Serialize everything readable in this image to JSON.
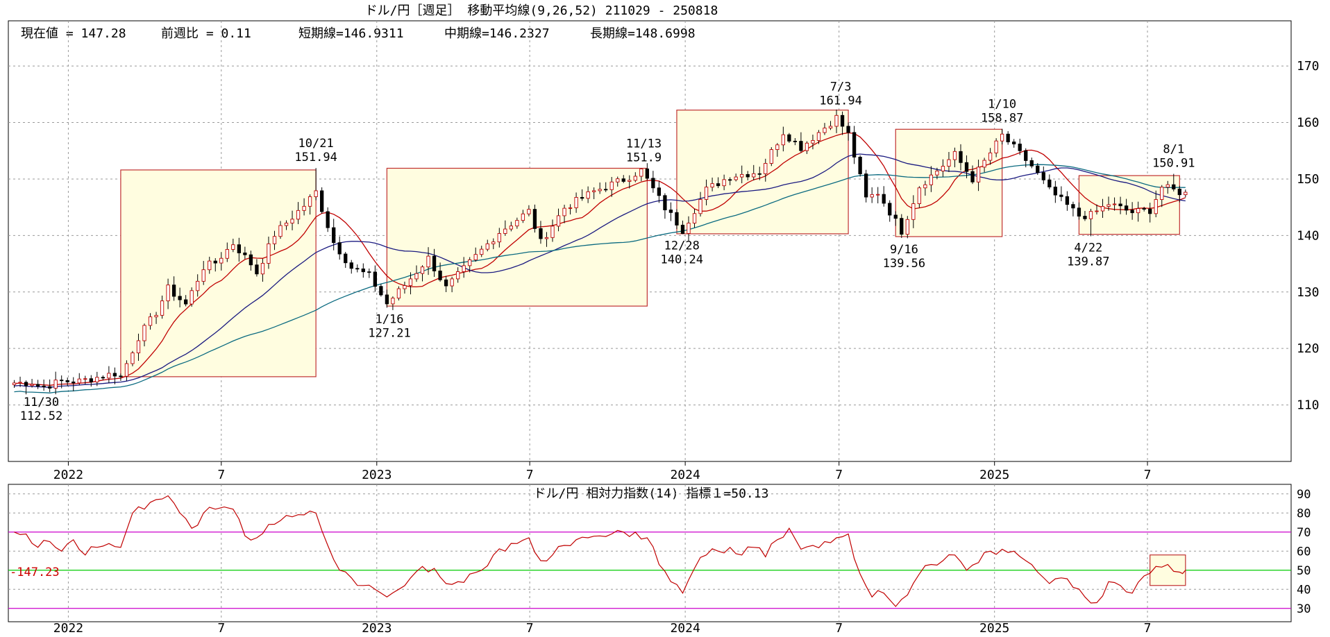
{
  "main_title": "ドル/円［週足］ 移動平均線(9,26,52)  211029 - 250818",
  "info": {
    "current": "現在値 = 147.28",
    "weekly_change": "前週比 = 0.11",
    "short_ma": "短期線=146.9311",
    "mid_ma": "中期線=146.2327",
    "long_ma": "長期線=148.6998"
  },
  "colors": {
    "up_candle": "#ffffff",
    "down_candle": "#000000",
    "short_ma": "#c00000",
    "mid_ma": "#1a1a80",
    "long_ma": "#0a6a80",
    "highlight_box_fill": "#fffde0",
    "highlight_box_border": "#c03030",
    "rsi_line": "#c00000",
    "rsi_band_line": "#cc00cc",
    "rsi_mid_line": "#00cc00",
    "rsi_marker": "#cc0000"
  },
  "chart_data": [
    {
      "type": "candlestick",
      "title": "ドル/円［週足］ 移動平均線(9,26,52)  211029 - 250818",
      "x_range": [
        "2021-10-29",
        "2025-08-18"
      ],
      "ylim": [
        100,
        178
      ],
      "y_ticks": [
        110,
        120,
        130,
        140,
        150,
        160,
        170
      ],
      "x_tick_labels": [
        {
          "date": "2022-01-01",
          "label": "2022"
        },
        {
          "date": "2022-07-01",
          "label": "7"
        },
        {
          "date": "2023-01-01",
          "label": "2023"
        },
        {
          "date": "2023-07-01",
          "label": "7"
        },
        {
          "date": "2024-01-01",
          "label": "2024"
        },
        {
          "date": "2024-07-01",
          "label": "7"
        },
        {
          "date": "2025-01-01",
          "label": "2025"
        },
        {
          "date": "2025-07-01",
          "label": "7"
        }
      ],
      "grid": true,
      "key_points": [
        {
          "date": "2021-11-30",
          "value": 112.52
        },
        {
          "date": "2022-10-21",
          "value": 151.94
        },
        {
          "date": "2023-01-16",
          "value": 127.21
        },
        {
          "date": "2023-11-13",
          "value": 151.9
        },
        {
          "date": "2023-12-28",
          "value": 140.24
        },
        {
          "date": "2024-07-03",
          "value": 161.94
        },
        {
          "date": "2024-09-16",
          "value": 139.56
        },
        {
          "date": "2025-01-10",
          "value": 158.87
        },
        {
          "date": "2025-04-22",
          "value": 139.87
        },
        {
          "date": "2025-08-01",
          "value": 150.91
        }
      ],
      "annotations": [
        {
          "date": "2021-11-30",
          "value": 112.52,
          "date_label": "11/30",
          "value_label": "112.52",
          "pos": "below"
        },
        {
          "date": "2022-10-21",
          "value": 151.94,
          "date_label": "10/21",
          "value_label": "151.94",
          "pos": "above"
        },
        {
          "date": "2023-01-16",
          "value": 127.21,
          "date_label": "1/16",
          "value_label": "127.21",
          "pos": "below"
        },
        {
          "date": "2023-11-13",
          "value": 151.9,
          "date_label": "11/13",
          "value_label": "151.9",
          "pos": "above"
        },
        {
          "date": "2023-12-28",
          "value": 140.24,
          "date_label": "12/28",
          "value_label": "140.24",
          "pos": "below"
        },
        {
          "date": "2024-07-03",
          "value": 161.94,
          "date_label": "7/3",
          "value_label": "161.94",
          "pos": "above"
        },
        {
          "date": "2024-09-16",
          "value": 139.56,
          "date_label": "9/16",
          "value_label": "139.56",
          "pos": "below"
        },
        {
          "date": "2025-01-10",
          "value": 158.87,
          "date_label": "1/10",
          "value_label": "158.87",
          "pos": "above"
        },
        {
          "date": "2025-04-22",
          "value": 139.87,
          "date_label": "4/22",
          "value_label": "139.87",
          "pos": "below"
        },
        {
          "date": "2025-08-01",
          "value": 150.91,
          "date_label": "8/1",
          "value_label": "150.91",
          "pos": "above"
        }
      ],
      "highlight_boxes": [
        {
          "start": "2022-03-04",
          "end": "2022-10-21",
          "low": 115.0,
          "high": 151.6
        },
        {
          "start": "2023-01-13",
          "end": "2023-11-17",
          "low": 127.5,
          "high": 151.9
        },
        {
          "start": "2023-12-22",
          "end": "2024-07-12",
          "low": 140.3,
          "high": 162.2
        },
        {
          "start": "2024-09-06",
          "end": "2025-01-10",
          "low": 139.8,
          "high": 158.8
        },
        {
          "start": "2025-04-11",
          "end": "2025-08-08",
          "low": 140.2,
          "high": 150.6
        }
      ],
      "series": [
        {
          "name": "短期線",
          "period": 9
        },
        {
          "name": "中期線",
          "period": 26
        },
        {
          "name": "長期線",
          "period": 52
        }
      ],
      "weekly_close_path": [
        [
          "2021-10-29",
          113.9
        ],
        [
          "2021-11-19",
          114.0
        ],
        [
          "2021-11-30",
          113.1
        ],
        [
          "2021-12-24",
          114.2
        ],
        [
          "2022-01-14",
          114.2
        ],
        [
          "2022-02-25",
          115.6
        ],
        [
          "2022-03-04",
          115.0
        ],
        [
          "2022-03-25",
          122.0
        ],
        [
          "2022-04-15",
          126.4
        ],
        [
          "2022-04-29",
          130.6
        ],
        [
          "2022-05-20",
          127.8
        ],
        [
          "2022-06-10",
          134.4
        ],
        [
          "2022-06-24",
          135.2
        ],
        [
          "2022-07-15",
          138.6
        ],
        [
          "2022-08-05",
          135.0
        ],
        [
          "2022-08-12",
          133.4
        ],
        [
          "2022-09-02",
          140.2
        ],
        [
          "2022-10-07",
          145.3
        ],
        [
          "2022-10-21",
          147.7
        ],
        [
          "2022-11-11",
          138.8
        ],
        [
          "2022-12-02",
          134.3
        ],
        [
          "2022-12-23",
          132.9
        ],
        [
          "2023-01-13",
          127.9
        ],
        [
          "2023-02-03",
          131.2
        ],
        [
          "2023-03-03",
          136.0
        ],
        [
          "2023-03-24",
          130.7
        ],
        [
          "2023-04-28",
          136.3
        ],
        [
          "2023-05-26",
          140.6
        ],
        [
          "2023-06-30",
          144.3
        ],
        [
          "2023-07-14",
          138.8
        ],
        [
          "2023-08-11",
          144.9
        ],
        [
          "2023-09-15",
          147.8
        ],
        [
          "2023-10-20",
          149.9
        ],
        [
          "2023-11-10",
          151.5
        ],
        [
          "2023-12-08",
          144.9
        ],
        [
          "2023-12-29",
          141.0
        ],
        [
          "2024-01-26",
          148.1
        ],
        [
          "2024-02-23",
          150.5
        ],
        [
          "2024-03-29",
          151.3
        ],
        [
          "2024-04-26",
          158.3
        ],
        [
          "2024-05-17",
          155.6
        ],
        [
          "2024-06-28",
          160.9
        ],
        [
          "2024-07-12",
          157.9
        ],
        [
          "2024-08-02",
          146.5
        ],
        [
          "2024-08-16",
          147.6
        ],
        [
          "2024-09-13",
          140.8
        ],
        [
          "2024-10-04",
          148.7
        ],
        [
          "2024-11-15",
          154.3
        ],
        [
          "2024-12-06",
          150.0
        ],
        [
          "2025-01-10",
          157.7
        ],
        [
          "2025-02-14",
          152.3
        ],
        [
          "2025-03-07",
          148.0
        ],
        [
          "2025-04-11",
          143.5
        ],
        [
          "2025-04-25",
          143.6
        ],
        [
          "2025-05-16",
          145.6
        ],
        [
          "2025-06-13",
          144.1
        ],
        [
          "2025-07-04",
          144.5
        ],
        [
          "2025-07-18",
          148.6
        ],
        [
          "2025-08-08",
          147.7
        ],
        [
          "2025-08-18",
          147.28
        ]
      ]
    },
    {
      "type": "line",
      "title": "ドル/円  相対力指数(14) 指標１=50.13",
      "ylim": [
        23,
        95
      ],
      "y_ticks": [
        30,
        40,
        50,
        60,
        70,
        80,
        90
      ],
      "reference_lines": [
        30,
        50,
        70
      ],
      "marker_label": "-147.23",
      "highlight_box": {
        "start": "2025-07-04",
        "end": "2025-08-15",
        "low": 42,
        "high": 58
      },
      "series": [
        {
          "name": "相対力指数(14)",
          "points": [
            [
              "2021-10-29",
              70
            ],
            [
              "2021-11-12",
              69
            ],
            [
              "2021-11-26",
              62
            ],
            [
              "2021-12-10",
              65
            ],
            [
              "2021-12-24",
              60
            ],
            [
              "2022-01-07",
              66
            ],
            [
              "2022-01-21",
              58
            ],
            [
              "2022-02-04",
              62
            ],
            [
              "2022-02-18",
              64
            ],
            [
              "2022-03-04",
              62
            ],
            [
              "2022-03-18",
              80
            ],
            [
              "2022-04-01",
              82
            ],
            [
              "2022-04-15",
              87
            ],
            [
              "2022-04-29",
              89
            ],
            [
              "2022-05-13",
              80
            ],
            [
              "2022-05-27",
              72
            ],
            [
              "2022-06-10",
              80
            ],
            [
              "2022-06-24",
              82
            ],
            [
              "2022-07-15",
              82
            ],
            [
              "2022-07-29",
              68
            ],
            [
              "2022-08-12",
              67
            ],
            [
              "2022-08-26",
              74
            ],
            [
              "2022-09-09",
              76
            ],
            [
              "2022-09-23",
              78
            ],
            [
              "2022-10-07",
              79
            ],
            [
              "2022-10-21",
              80
            ],
            [
              "2022-11-04",
              63
            ],
            [
              "2022-11-18",
              50
            ],
            [
              "2022-12-02",
              46
            ],
            [
              "2022-12-16",
              42
            ],
            [
              "2022-12-30",
              40
            ],
            [
              "2023-01-13",
              36
            ],
            [
              "2023-01-27",
              40
            ],
            [
              "2023-02-10",
              46
            ],
            [
              "2023-02-24",
              52
            ],
            [
              "2023-03-10",
              51
            ],
            [
              "2023-03-24",
              43
            ],
            [
              "2023-04-07",
              44
            ],
            [
              "2023-04-21",
              48
            ],
            [
              "2023-05-05",
              50
            ],
            [
              "2023-05-19",
              58
            ],
            [
              "2023-06-02",
              60
            ],
            [
              "2023-06-16",
              64
            ],
            [
              "2023-06-30",
              67
            ],
            [
              "2023-07-14",
              55
            ],
            [
              "2023-07-28",
              58
            ],
            [
              "2023-08-11",
              63
            ],
            [
              "2023-08-25",
              66
            ],
            [
              "2023-09-08",
              67
            ],
            [
              "2023-09-22",
              68
            ],
            [
              "2023-10-06",
              69
            ],
            [
              "2023-10-20",
              70
            ],
            [
              "2023-11-03",
              70
            ],
            [
              "2023-11-17",
              67
            ],
            [
              "2023-12-01",
              53
            ],
            [
              "2023-12-15",
              44
            ],
            [
              "2023-12-29",
              38
            ],
            [
              "2024-01-12",
              51
            ],
            [
              "2024-01-26",
              58
            ],
            [
              "2024-02-09",
              60
            ],
            [
              "2024-02-23",
              62
            ],
            [
              "2024-03-08",
              58
            ],
            [
              "2024-03-22",
              62
            ],
            [
              "2024-04-05",
              57
            ],
            [
              "2024-04-19",
              66
            ],
            [
              "2024-05-03",
              72
            ],
            [
              "2024-05-17",
              61
            ],
            [
              "2024-05-31",
              63
            ],
            [
              "2024-06-14",
              65
            ],
            [
              "2024-06-28",
              67
            ],
            [
              "2024-07-12",
              69
            ],
            [
              "2024-07-26",
              48
            ],
            [
              "2024-08-09",
              36
            ],
            [
              "2024-08-23",
              38
            ],
            [
              "2024-09-06",
              31
            ],
            [
              "2024-09-20",
              37
            ],
            [
              "2024-10-04",
              48
            ],
            [
              "2024-10-18",
              53
            ],
            [
              "2024-11-01",
              55
            ],
            [
              "2024-11-15",
              58
            ],
            [
              "2024-11-29",
              50
            ],
            [
              "2024-12-13",
              54
            ],
            [
              "2024-12-27",
              60
            ],
            [
              "2025-01-10",
              61
            ],
            [
              "2025-01-24",
              60
            ],
            [
              "2025-02-07",
              55
            ],
            [
              "2025-02-21",
              49
            ],
            [
              "2025-03-07",
              43
            ],
            [
              "2025-03-21",
              46
            ],
            [
              "2025-04-04",
              41
            ],
            [
              "2025-04-18",
              36
            ],
            [
              "2025-05-02",
              33
            ],
            [
              "2025-05-16",
              44
            ],
            [
              "2025-05-30",
              42
            ],
            [
              "2025-06-13",
              38
            ],
            [
              "2025-06-27",
              47
            ],
            [
              "2025-07-11",
              52
            ],
            [
              "2025-07-25",
              53
            ],
            [
              "2025-08-08",
              49
            ],
            [
              "2025-08-15",
              50
            ]
          ]
        }
      ]
    }
  ]
}
